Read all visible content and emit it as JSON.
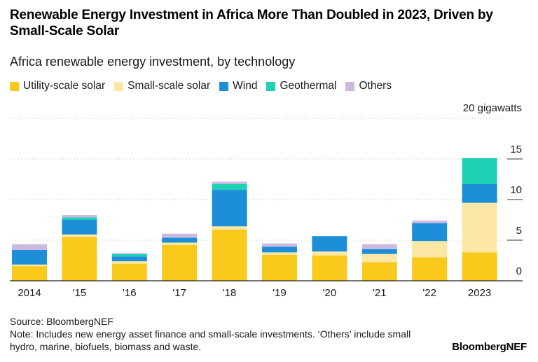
{
  "chart_data": {
    "type": "bar",
    "stacked": true,
    "title": "Renewable Energy Investment in Africa More Than Doubled in 2023, Driven by Small-Scale Solar",
    "subtitle": "Africa renewable energy investment, by technology",
    "unit_label": "20 gigawatts",
    "categories": [
      "2014",
      "'15",
      "'16",
      "'17",
      "'18",
      "'19",
      "'20",
      "'21",
      "'22",
      "2023"
    ],
    "yticks": [
      0,
      5,
      10,
      15
    ],
    "ylim": [
      0,
      20
    ],
    "series": [
      {
        "name": "Utility-scale solar",
        "color": "#f9c91c",
        "values": [
          1.8,
          5.4,
          2.1,
          4.4,
          6.3,
          3.2,
          3.1,
          2.3,
          2.9,
          3.5
        ]
      },
      {
        "name": "Small-scale solar",
        "color": "#fce8a4",
        "values": [
          0.2,
          0.3,
          0.3,
          0.3,
          0.4,
          0.3,
          0.5,
          1.0,
          2.0,
          6.1
        ]
      },
      {
        "name": "Wind",
        "color": "#1d8ed8",
        "values": [
          1.8,
          1.8,
          0.6,
          0.6,
          4.5,
          0.7,
          1.9,
          0.6,
          2.2,
          2.3
        ]
      },
      {
        "name": "Geothermal",
        "color": "#1ed1b5",
        "values": [
          0.0,
          0.3,
          0.3,
          0.0,
          0.7,
          0.0,
          0.0,
          0.0,
          0.0,
          3.2
        ]
      },
      {
        "name": "Others",
        "color": "#cdb8e0",
        "values": [
          0.7,
          0.3,
          0.1,
          0.5,
          0.3,
          0.4,
          0.0,
          0.6,
          0.3,
          0.0
        ]
      }
    ]
  },
  "source": "Source: BloombergNEF",
  "note": "Note: Includes new energy asset finance and small-scale investments. ‘Others’ include small hydro, marine, biofuels, biomass and waste.",
  "logo": "BloombergNEF"
}
